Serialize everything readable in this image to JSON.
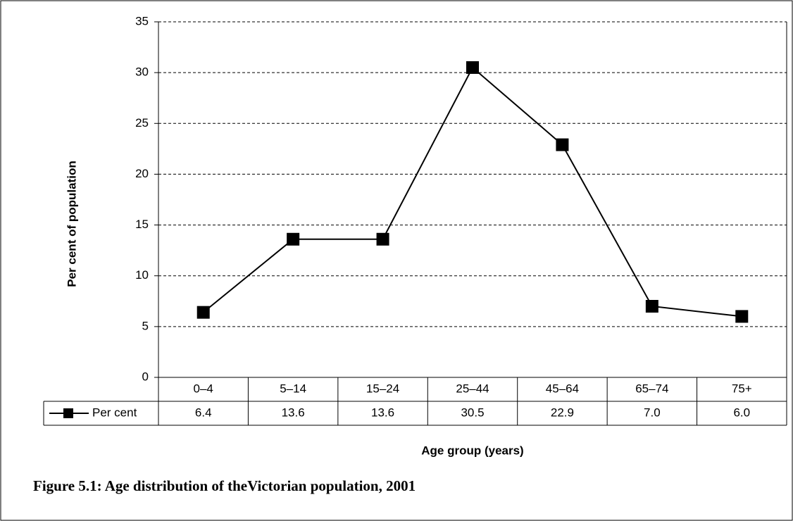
{
  "chart_data": {
    "type": "line",
    "caption": "Figure 5.1: Age distribution of theVictorian population, 2001",
    "x_label": "Age group (years)",
    "y_label": "Per cent of population",
    "categories": [
      "0–4",
      "5–14",
      "15–24",
      "25–44",
      "45–64",
      "65–74",
      "75+"
    ],
    "series": [
      {
        "name": "Per cent",
        "color": "#000000",
        "values": [
          6.4,
          13.6,
          13.6,
          30.5,
          22.9,
          7.0,
          6.0
        ],
        "value_labels": [
          "6.4",
          "13.6",
          "13.6",
          "30.5",
          "22.9",
          "7.0",
          "6.0"
        ]
      }
    ],
    "ylim": [
      0,
      35
    ],
    "yticks": [
      0,
      5,
      10,
      15,
      20,
      25,
      30,
      35
    ],
    "grid": true
  }
}
